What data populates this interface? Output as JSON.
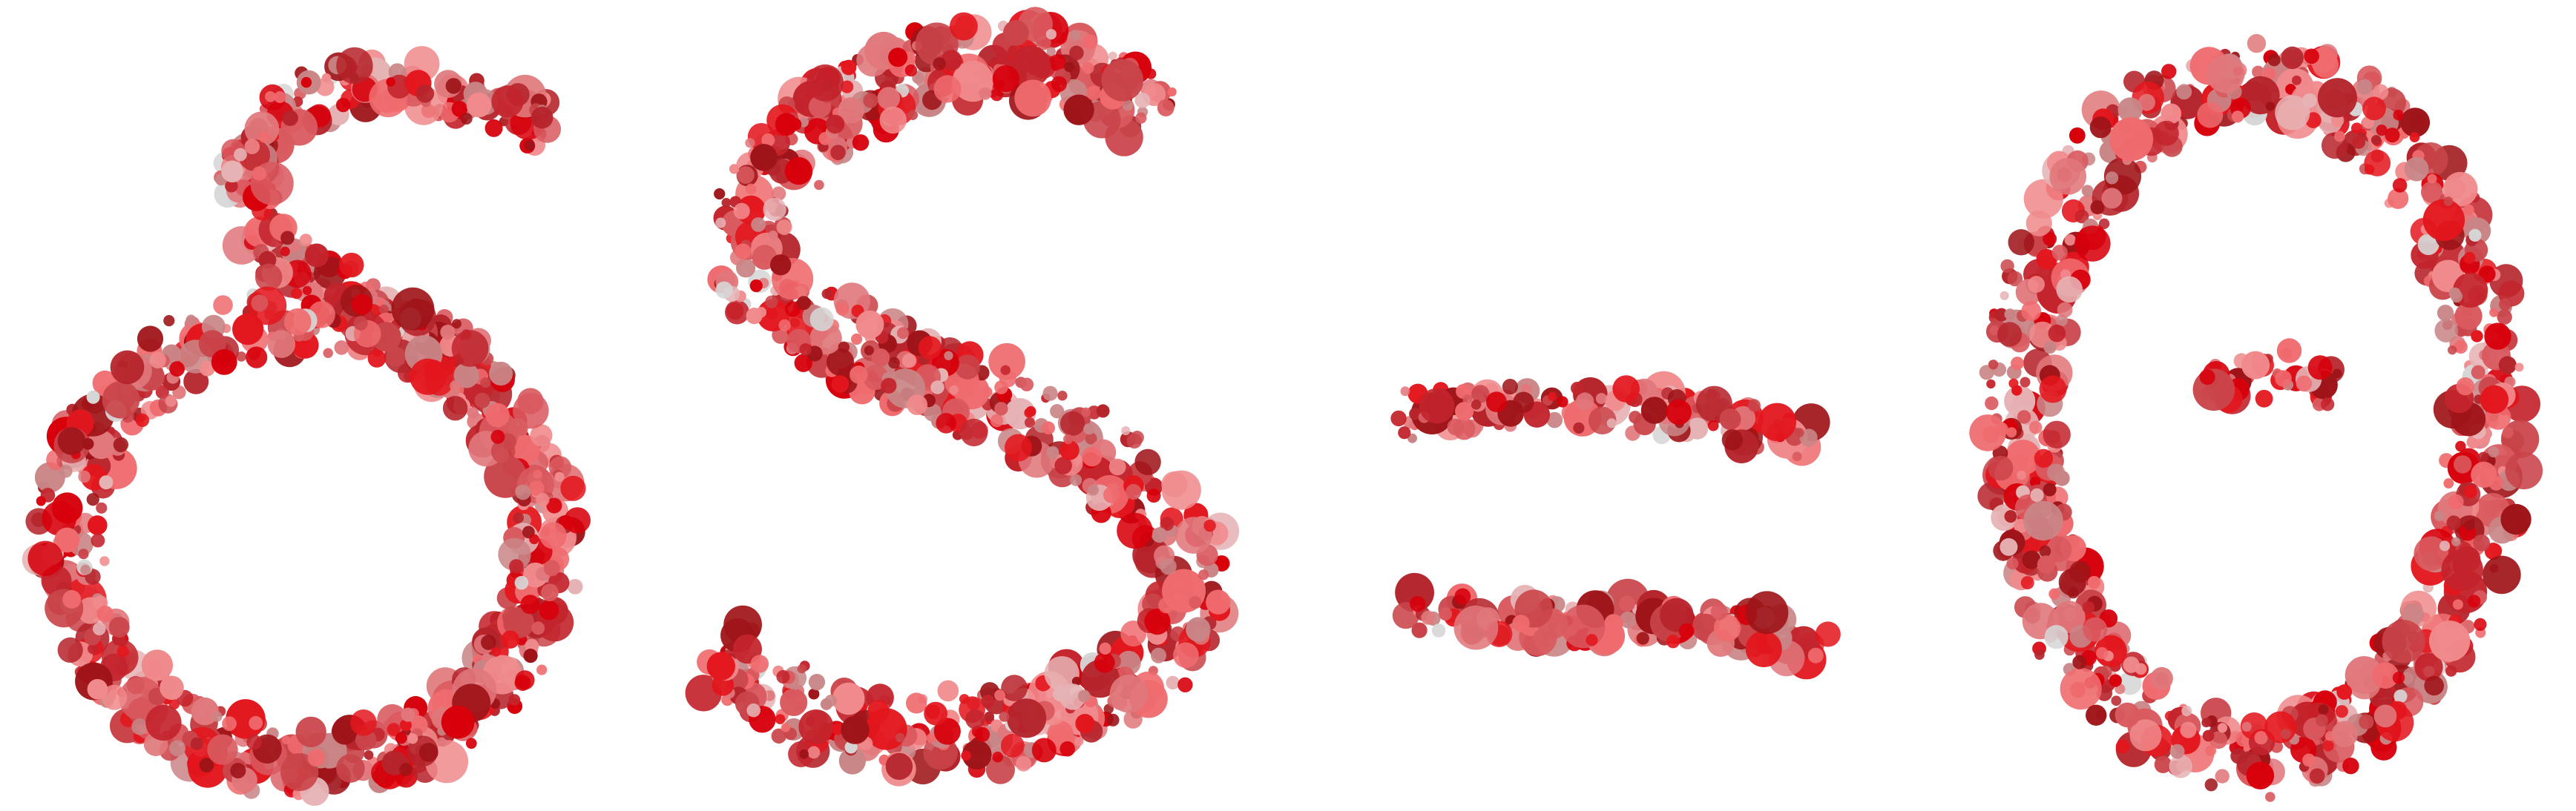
{
  "artwork": {
    "glyphs": [
      "δ",
      "S",
      "=",
      "0"
    ],
    "palette": [
      "#d7000b",
      "#e3161d",
      "#c3242c",
      "#b5242b",
      "#9e1418",
      "#c9454a",
      "#d95a5f",
      "#e0787c",
      "#c98586",
      "#f08a8c",
      "#ef6b6e",
      "#e6b3b5",
      "#d6d6d6"
    ]
  }
}
